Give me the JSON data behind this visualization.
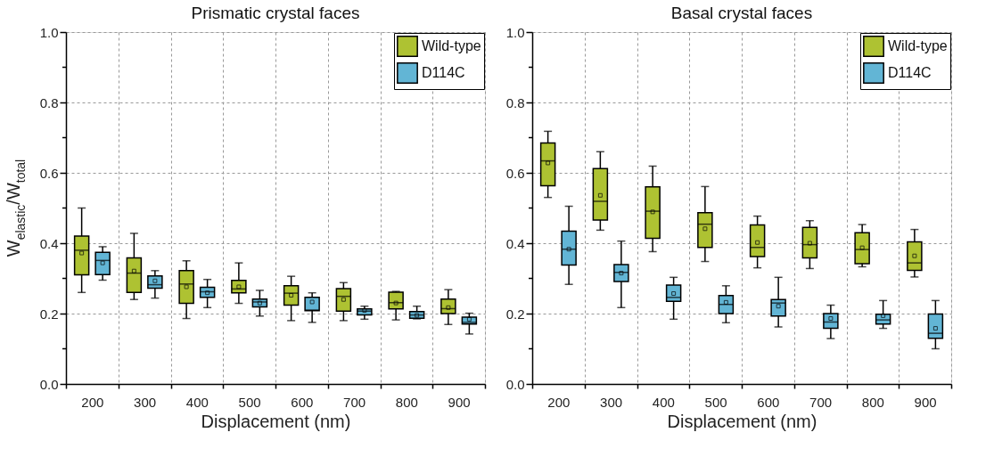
{
  "chart_data": [
    {
      "type": "box",
      "title": "Prismatic crystal faces",
      "xlabel": "Displacement (nm)",
      "ylabel": "W$_{elastic}$/W$_{total}$",
      "categories": [
        "200",
        "300",
        "400",
        "500",
        "600",
        "700",
        "800",
        "900"
      ],
      "ylim": [
        0,
        1
      ],
      "yticks": [
        {
          "value": 0,
          "label": "0.0"
        },
        {
          "value": 0.1,
          "label": null
        },
        0.2,
        {
          "value": 0.3,
          "label": null
        },
        0.4,
        {
          "value": 0.5,
          "label": null
        },
        0.6,
        {
          "value": 0.7,
          "label": null
        },
        0.8,
        {
          "value": 0.9,
          "label": null
        },
        {
          "value": 1,
          "label": "1.0"
        }
      ],
      "grid": true,
      "legend": "top right",
      "series": [
        {
          "name": "Wild-type",
          "color": "#aec232",
          "boxes": [
            {
              "low": 0.26,
              "q1": 0.31,
              "median": 0.38,
              "q3": 0.42,
              "high": 0.5,
              "mean": 0.372
            },
            {
              "low": 0.24,
              "q1": 0.26,
              "median": 0.315,
              "q3": 0.358,
              "high": 0.428,
              "mean": 0.321
            },
            {
              "low": 0.186,
              "q1": 0.229,
              "median": 0.284,
              "q3": 0.322,
              "high": 0.35,
              "mean": 0.276
            },
            {
              "low": 0.229,
              "q1": 0.259,
              "median": 0.27,
              "q3": 0.294,
              "high": 0.344,
              "mean": 0.276
            },
            {
              "low": 0.18,
              "q1": 0.224,
              "median": 0.258,
              "q3": 0.279,
              "high": 0.306,
              "mean": 0.252
            },
            {
              "low": 0.18,
              "q1": 0.207,
              "median": 0.249,
              "q3": 0.271,
              "high": 0.288,
              "mean": 0.24
            },
            {
              "low": 0.182,
              "q1": 0.213,
              "median": 0.231,
              "q3": 0.261,
              "high": 0.263,
              "mean": 0.23
            },
            {
              "low": 0.169,
              "q1": 0.2,
              "median": 0.214,
              "q3": 0.241,
              "high": 0.268,
              "mean": 0.217
            }
          ]
        },
        {
          "name": "D114C",
          "color": "#62b5d5",
          "boxes": [
            {
              "low": 0.295,
              "q1": 0.311,
              "median": 0.351,
              "q3": 0.374,
              "high": 0.39,
              "mean": 0.344
            },
            {
              "low": 0.244,
              "q1": 0.272,
              "median": 0.282,
              "q3": 0.307,
              "high": 0.322,
              "mean": 0.293
            },
            {
              "low": 0.217,
              "q1": 0.246,
              "median": 0.262,
              "q3": 0.275,
              "high": 0.297,
              "mean": 0.259
            },
            {
              "low": 0.193,
              "q1": 0.219,
              "median": 0.233,
              "q3": 0.241,
              "high": 0.266,
              "mean": 0.23
            },
            {
              "low": 0.175,
              "q1": 0.208,
              "median": 0.21,
              "q3": 0.246,
              "high": 0.259,
              "mean": 0.233
            },
            {
              "low": 0.184,
              "q1": 0.196,
              "median": 0.207,
              "q3": 0.213,
              "high": 0.221,
              "mean": 0.209
            },
            {
              "low": 0.185,
              "q1": 0.187,
              "median": 0.196,
              "q3": 0.206,
              "high": 0.221,
              "mean": 0.195
            },
            {
              "low": 0.142,
              "q1": 0.17,
              "median": 0.175,
              "q3": 0.19,
              "high": 0.201,
              "mean": 0.184
            }
          ]
        }
      ]
    },
    {
      "type": "box",
      "title": "Basal crystal faces",
      "xlabel": "Displacement (nm)",
      "categories": [
        "200",
        "300",
        "400",
        "500",
        "600",
        "700",
        "800",
        "900"
      ],
      "ylim": [
        0,
        1
      ],
      "yticks": [
        {
          "value": 0,
          "label": "0.0"
        },
        {
          "value": 0.1,
          "label": null
        },
        0.2,
        {
          "value": 0.3,
          "label": null
        },
        0.4,
        {
          "value": 0.5,
          "label": null
        },
        0.6,
        {
          "value": 0.7,
          "label": null
        },
        0.8,
        {
          "value": 0.9,
          "label": null
        },
        {
          "value": 1,
          "label": "1.0"
        }
      ],
      "grid": true,
      "legend": "top right",
      "series": [
        {
          "name": "Wild-type",
          "color": "#aec232",
          "boxes": [
            {
              "low": 0.53,
              "q1": 0.563,
              "median": 0.634,
              "q3": 0.685,
              "high": 0.718,
              "mean": 0.628
            },
            {
              "low": 0.437,
              "q1": 0.466,
              "median": 0.519,
              "q3": 0.612,
              "high": 0.66,
              "mean": 0.536
            },
            {
              "low": 0.376,
              "q1": 0.414,
              "median": 0.491,
              "q3": 0.56,
              "high": 0.619,
              "mean": 0.489
            },
            {
              "low": 0.348,
              "q1": 0.388,
              "median": 0.454,
              "q3": 0.487,
              "high": 0.561,
              "mean": 0.441
            },
            {
              "low": 0.33,
              "q1": 0.362,
              "median": 0.388,
              "q3": 0.452,
              "high": 0.477,
              "mean": 0.402
            },
            {
              "low": 0.328,
              "q1": 0.358,
              "median": 0.396,
              "q3": 0.445,
              "high": 0.464,
              "mean": 0.4
            },
            {
              "low": 0.333,
              "q1": 0.342,
              "median": 0.382,
              "q3": 0.43,
              "high": 0.453,
              "mean": 0.387
            },
            {
              "low": 0.304,
              "q1": 0.323,
              "median": 0.344,
              "q3": 0.404,
              "high": 0.439,
              "mean": 0.364
            }
          ]
        },
        {
          "name": "D114C",
          "color": "#62b5d5",
          "boxes": [
            {
              "low": 0.283,
              "q1": 0.338,
              "median": 0.383,
              "q3": 0.434,
              "high": 0.505,
              "mean": 0.383
            },
            {
              "low": 0.217,
              "q1": 0.291,
              "median": 0.317,
              "q3": 0.339,
              "high": 0.406,
              "mean": 0.315
            },
            {
              "low": 0.184,
              "q1": 0.235,
              "median": 0.246,
              "q3": 0.281,
              "high": 0.303,
              "mean": 0.257
            },
            {
              "low": 0.174,
              "q1": 0.2,
              "median": 0.226,
              "q3": 0.251,
              "high": 0.279,
              "mean": 0.232
            },
            {
              "low": 0.162,
              "q1": 0.193,
              "median": 0.23,
              "q3": 0.24,
              "high": 0.303,
              "mean": 0.221
            },
            {
              "low": 0.129,
              "q1": 0.158,
              "median": 0.176,
              "q3": 0.2,
              "high": 0.224,
              "mean": 0.186
            },
            {
              "low": 0.158,
              "q1": 0.17,
              "median": 0.182,
              "q3": 0.198,
              "high": 0.237,
              "mean": 0.194
            },
            {
              "low": 0.1,
              "q1": 0.13,
              "median": 0.144,
              "q3": 0.199,
              "high": 0.237,
              "mean": 0.158
            }
          ]
        }
      ]
    }
  ]
}
